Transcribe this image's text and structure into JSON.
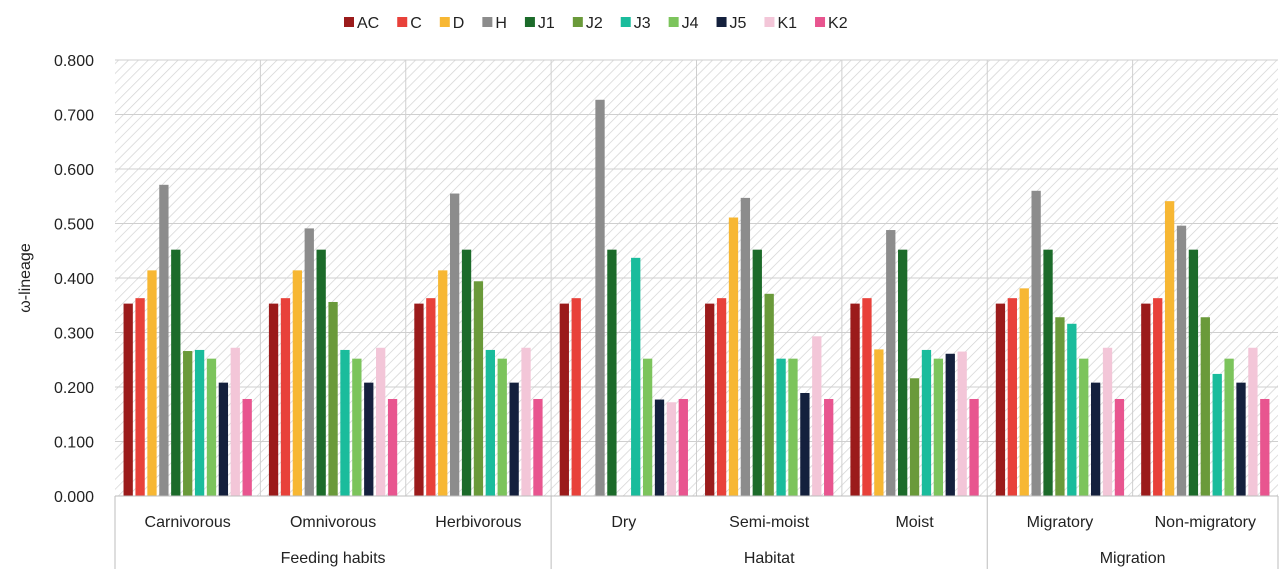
{
  "chart_data": {
    "type": "bar",
    "ylabel": "ω-lineage",
    "ylim": [
      0,
      0.8
    ],
    "yticks": [
      "0.000",
      "0.100",
      "0.200",
      "0.300",
      "0.400",
      "0.500",
      "0.600",
      "0.700",
      "0.800"
    ],
    "legend_position": "top",
    "grid": true,
    "groups": [
      {
        "label": "Feeding habits",
        "categories": [
          "Carnivorous",
          "Omnivorous",
          "Herbivorous"
        ]
      },
      {
        "label": "Habitat",
        "categories": [
          "Dry",
          "Semi-moist",
          "Moist"
        ]
      },
      {
        "label": "Migration",
        "categories": [
          "Migratory",
          "Non-migratory"
        ]
      }
    ],
    "categories": [
      "Carnivorous",
      "Omnivorous",
      "Herbivorous",
      "Dry",
      "Semi-moist",
      "Moist",
      "Migratory",
      "Non-migratory"
    ],
    "series": [
      {
        "name": "AC",
        "color": "#9b1b1b",
        "values": [
          0.353,
          0.353,
          0.353,
          0.353,
          0.353,
          0.353,
          0.353,
          0.353
        ]
      },
      {
        "name": "C",
        "color": "#e8413a",
        "values": [
          0.363,
          0.363,
          0.363,
          0.363,
          0.363,
          0.363,
          0.363,
          0.363
        ]
      },
      {
        "name": "D",
        "color": "#f7b733",
        "values": [
          0.414,
          0.414,
          0.414,
          null,
          0.511,
          0.269,
          0.381,
          0.541
        ]
      },
      {
        "name": "H",
        "color": "#8c8c8c",
        "values": [
          0.571,
          0.491,
          0.555,
          0.727,
          0.547,
          0.488,
          0.56,
          0.496
        ]
      },
      {
        "name": "J1",
        "color": "#1c6b2a",
        "values": [
          0.452,
          0.452,
          0.452,
          0.452,
          0.452,
          0.452,
          0.452,
          0.452
        ]
      },
      {
        "name": "J2",
        "color": "#6a9a3a",
        "values": [
          0.266,
          0.356,
          0.394,
          null,
          0.371,
          0.216,
          0.328,
          0.328
        ]
      },
      {
        "name": "J3",
        "color": "#1abc9c",
        "values": [
          0.268,
          0.268,
          0.268,
          0.437,
          0.252,
          0.268,
          0.316,
          0.224
        ]
      },
      {
        "name": "J4",
        "color": "#7cc45c",
        "values": [
          0.252,
          0.252,
          0.252,
          0.252,
          0.252,
          0.252,
          0.252,
          0.252
        ]
      },
      {
        "name": "J5",
        "color": "#14203d",
        "values": [
          0.208,
          0.208,
          0.208,
          0.177,
          0.189,
          0.261,
          0.208,
          0.208
        ]
      },
      {
        "name": "K1",
        "color": "#f3c6d8",
        "values": [
          0.272,
          0.272,
          0.272,
          0.172,
          0.293,
          0.265,
          0.272,
          0.272
        ]
      },
      {
        "name": "K2",
        "color": "#e8558f",
        "values": [
          0.178,
          0.178,
          0.178,
          0.178,
          0.178,
          0.178,
          0.178,
          0.178
        ]
      }
    ]
  }
}
